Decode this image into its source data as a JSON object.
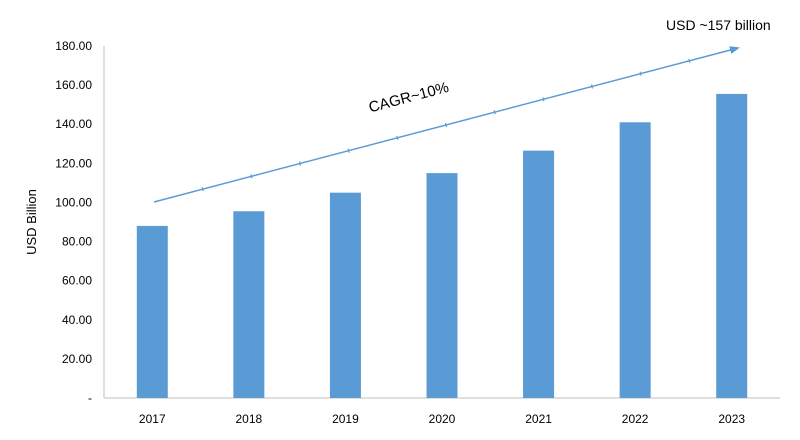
{
  "chart_data": {
    "type": "bar",
    "categories": [
      "2017",
      "2018",
      "2019",
      "2020",
      "2021",
      "2022",
      "2023"
    ],
    "values": [
      88,
      95.5,
      105,
      115,
      126.5,
      141,
      155.5
    ],
    "ylabel": "USD Billion",
    "ylim": [
      0,
      180
    ],
    "yticks": [
      0,
      20,
      40,
      60,
      80,
      100,
      120,
      140,
      160,
      180
    ],
    "ytick_labels": [
      "-",
      "20.00",
      "40.00",
      "60.00",
      "80.00",
      "100.00",
      "120.00",
      "140.00",
      "160.00",
      "180.00"
    ],
    "grid": false,
    "bar_color": "#5b9bd5",
    "trend_color": "#5b9bd5",
    "annotations": {
      "cagr": "CAGR~10%",
      "end_value": "USD ~157 billion"
    }
  }
}
